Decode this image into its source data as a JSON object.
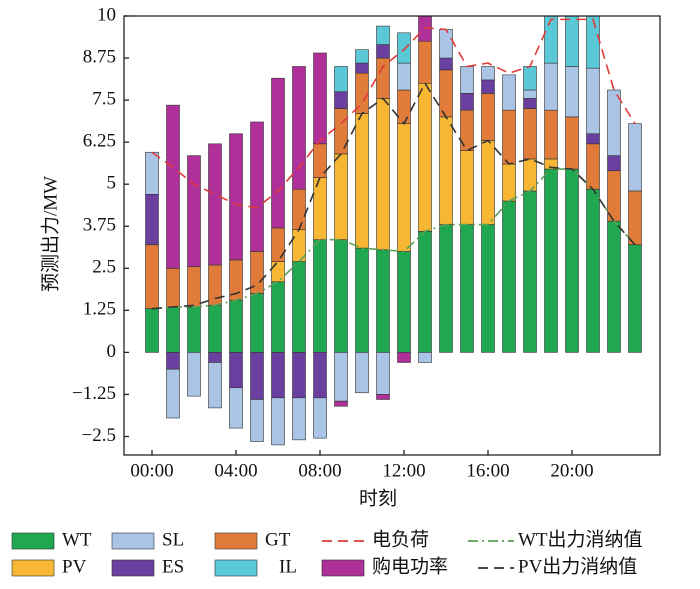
{
  "chart_data": {
    "type": "bar",
    "stacked": true,
    "x_label": "时刻",
    "y_label": "预测出力/MW",
    "categories": [
      "00:00",
      null,
      null,
      null,
      "04:00",
      null,
      null,
      null,
      "08:00",
      null,
      null,
      null,
      "12:00",
      null,
      null,
      null,
      "16:00",
      null,
      null,
      null,
      "20:00",
      null,
      null,
      null
    ],
    "ylim": [
      -3.05,
      10
    ],
    "yticks": [
      {
        "value": -2.5,
        "label": "−2.5"
      },
      {
        "value": -1.25,
        "label": "−1.25"
      },
      0,
      1.25,
      2.5,
      3.75,
      5,
      6.25,
      7.5,
      8.75,
      10
    ],
    "series": [
      {
        "name": "WT",
        "color": "#1fa84f",
        "values": [
          1.3,
          1.35,
          1.35,
          1.4,
          1.55,
          1.75,
          2.1,
          2.7,
          3.35,
          3.35,
          3.1,
          3.05,
          3.0,
          3.6,
          3.8,
          3.8,
          3.8,
          4.5,
          4.8,
          5.45,
          5.45,
          4.85,
          3.9,
          3.2
        ]
      },
      {
        "name": "PV",
        "color": "#f7b733",
        "values": [
          0,
          0,
          0,
          0,
          0,
          0,
          0.6,
          0.95,
          1.85,
          2.55,
          4.0,
          4.5,
          3.8,
          4.4,
          3.2,
          2.2,
          2.5,
          1.1,
          0.95,
          0.3,
          0,
          0,
          0,
          0
        ]
      },
      {
        "name": "GT",
        "color": "#e07b39",
        "values": [
          1.9,
          1.15,
          1.2,
          1.2,
          1.2,
          1.25,
          1.0,
          1.2,
          1.0,
          1.35,
          1.2,
          1.2,
          1.0,
          1.25,
          1.4,
          1.2,
          1.4,
          1.6,
          1.5,
          1.45,
          1.55,
          1.35,
          1.5,
          1.6
        ]
      },
      {
        "name": "ES",
        "color": "#6a3fa0",
        "values": [
          1.5,
          -0.5,
          0,
          -0.3,
          -1.05,
          -1.4,
          -1.35,
          -1.35,
          -1.35,
          0.5,
          0.3,
          0.4,
          0,
          0,
          0.35,
          0.5,
          0.4,
          0,
          0.3,
          0,
          0,
          0.3,
          0.45,
          0
        ]
      },
      {
        "name": "SL",
        "color": "#a9c4e4",
        "values": [
          1.25,
          -1.45,
          -1.3,
          -1.35,
          -1.2,
          -1.25,
          -1.4,
          -1.25,
          -1.2,
          -1.45,
          -1.2,
          -1.25,
          0.8,
          -0.3,
          0.85,
          0.8,
          0.4,
          1.05,
          0.25,
          1.4,
          1.5,
          1.95,
          1.95,
          2.0
        ]
      },
      {
        "name": "IL",
        "color": "#5bc8d8",
        "values": [
          0,
          0,
          0,
          0,
          0,
          0,
          0,
          0,
          0,
          0.75,
          0.4,
          0.55,
          0.9,
          0,
          0,
          0,
          0,
          0,
          0.7,
          1.4,
          1.5,
          1.55,
          0,
          0
        ]
      },
      {
        "name": "购电功率",
        "color": "#b0309a",
        "values": [
          0,
          4.85,
          3.3,
          3.6,
          3.75,
          3.85,
          4.45,
          3.65,
          2.7,
          -0.15,
          0,
          -0.15,
          -0.3,
          0.75,
          0,
          0,
          0,
          0,
          0,
          0,
          0,
          0,
          0,
          0
        ]
      }
    ],
    "lines": [
      {
        "name": "电负荷",
        "color": "#e03a3a",
        "dash": "dashed",
        "values": [
          5.95,
          5.5,
          5.0,
          4.7,
          4.4,
          4.3,
          4.8,
          5.5,
          6.3,
          6.8,
          7.4,
          8.5,
          9.0,
          9.65,
          9.6,
          8.5,
          8.6,
          8.3,
          8.5,
          9.9,
          9.9,
          9.9,
          7.8,
          6.8
        ]
      },
      {
        "name": "WT出力消纳值",
        "color": "#5aa05a",
        "dash": "dashdot",
        "values": [
          1.3,
          1.35,
          1.35,
          1.4,
          1.55,
          1.75,
          2.1,
          2.7,
          3.35,
          3.35,
          3.1,
          3.05,
          3.0,
          3.6,
          3.8,
          3.8,
          3.8,
          4.5,
          4.8,
          5.45,
          5.45,
          4.85,
          3.9,
          3.2
        ]
      },
      {
        "name": "PV出力消纳值",
        "color": "#333333",
        "dash": "dashed",
        "values": [
          1.3,
          1.35,
          1.4,
          1.6,
          1.75,
          2.0,
          2.7,
          3.65,
          5.2,
          5.9,
          7.1,
          7.55,
          6.8,
          8.0,
          7.0,
          6.0,
          6.3,
          5.6,
          5.75,
          5.5,
          5.45,
          4.85,
          3.9,
          3.2
        ]
      }
    ]
  }
}
